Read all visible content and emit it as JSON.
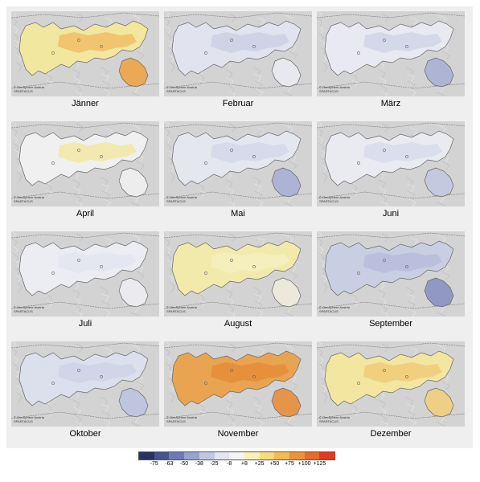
{
  "panels": [
    {
      "month": "Jänner",
      "north_color": "#f4e89a",
      "north_accent": "#f0b860",
      "east_color": "#eaa54a"
    },
    {
      "month": "Februar",
      "north_color": "#e2e4f0",
      "north_accent": "#c9cde3",
      "east_color": "#e9eaf1"
    },
    {
      "month": "März",
      "north_color": "#eaebf3",
      "north_accent": "#cdd1e6",
      "east_color": "#aab1d2"
    },
    {
      "month": "April",
      "north_color": "#f2f2f2",
      "north_accent": "#f3e79c",
      "east_color": "#efefef"
    },
    {
      "month": "Mai",
      "north_color": "#e6e8f1",
      "north_accent": "#d2d5e8",
      "east_color": "#a9b0d4"
    },
    {
      "month": "Juni",
      "north_color": "#ebecf3",
      "north_accent": "#d6d9ea",
      "east_color": "#c3c8e0"
    },
    {
      "month": "Juli",
      "north_color": "#eeeff4",
      "north_accent": "#e2e4ee",
      "east_color": "#ececf1"
    },
    {
      "month": "August",
      "north_color": "#f3eba7",
      "north_accent": "#f6f0c3",
      "east_color": "#eeeadb"
    },
    {
      "month": "September",
      "north_color": "#c9cde3",
      "north_accent": "#b3b9d9",
      "east_color": "#8b93c2"
    },
    {
      "month": "Oktober",
      "north_color": "#dcdfee",
      "north_accent": "#cdd1e6",
      "east_color": "#bdc2df"
    },
    {
      "month": "November",
      "north_color": "#eaa046",
      "north_accent": "#e48a36",
      "east_color": "#e68f3c"
    },
    {
      "month": "Dezember",
      "north_color": "#f4e79c",
      "north_accent": "#efc874",
      "east_color": "#efcf7c"
    }
  ],
  "credit_line1": "© GeoSphere Austria",
  "credit_line2": "SPARTACUS",
  "legend": {
    "colors": [
      "#27325f",
      "#46548f",
      "#6d7ab3",
      "#97a2cd",
      "#c1c7e2",
      "#e3e5f0",
      "#f4f4f4",
      "#f8f1b5",
      "#f6dc7c",
      "#f3bb54",
      "#ef9236",
      "#ea6a2a",
      "#e23a22"
    ],
    "labels": [
      "-75",
      "-63",
      "-50",
      "-38",
      "-25",
      "-8",
      "+8",
      "+25",
      "+50",
      "+75",
      "+100",
      "+125"
    ]
  }
}
